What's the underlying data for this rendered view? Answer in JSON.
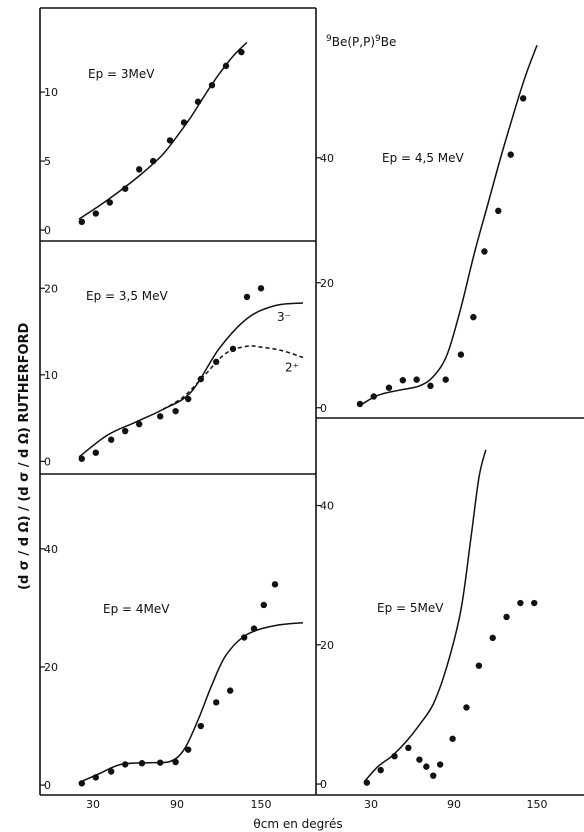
{
  "figure": {
    "title_parts": [
      "9",
      "Be(P,P)",
      "9",
      "Be"
    ],
    "ylabel": "(d σ / d Ω) / (d σ / d Ω) RUTHERFORD",
    "xlabel": "θcm en degrés",
    "x_ticks_left": [
      "30",
      "90",
      "150"
    ],
    "x_ticks_right": [
      "30",
      "90",
      "150"
    ]
  },
  "chart_data": [
    {
      "type": "line",
      "panel": "top-left",
      "label": "Ep = 3MeV",
      "xlim": [
        15,
        190
      ],
      "ylim": [
        -0.5,
        14.5
      ],
      "yticks": [
        0,
        5,
        10
      ],
      "ytick_labels": [
        "0",
        "5",
        "10"
      ],
      "series": [
        {
          "style": "solid",
          "x": [
            20,
            35,
            50,
            65,
            80,
            90,
            100,
            110,
            120,
            130,
            140
          ],
          "y": [
            0.8,
            1.8,
            2.9,
            4.1,
            5.5,
            6.8,
            8.2,
            9.8,
            11.3,
            12.6,
            13.6
          ]
        }
      ],
      "points": {
        "x": [
          22,
          32,
          42,
          53,
          63,
          73,
          85,
          95,
          105,
          115,
          125,
          136
        ],
        "y": [
          0.6,
          1.2,
          2.0,
          3.0,
          4.4,
          5.0,
          6.5,
          7.8,
          9.3,
          10.5,
          11.9,
          12.9
        ]
      }
    },
    {
      "type": "line",
      "panel": "middle-left",
      "label": "Ep = 3,5 MeV",
      "xlim": [
        15,
        190
      ],
      "ylim": [
        -1,
        25
      ],
      "yticks": [
        0,
        10,
        20
      ],
      "ytick_labels": [
        "0",
        "10",
        "20"
      ],
      "series": [
        {
          "name": "3⁻",
          "style": "solid",
          "x": [
            20,
            40,
            60,
            80,
            100,
            120,
            140,
            160,
            180
          ],
          "y": [
            0.5,
            3.0,
            4.5,
            6.0,
            8.0,
            13.0,
            16.5,
            18.0,
            18.3
          ]
        },
        {
          "name": "2⁺",
          "style": "dashed",
          "x": [
            80,
            95,
            110,
            125,
            140,
            150,
            165,
            180
          ],
          "y": [
            6.0,
            7.5,
            10.0,
            12.5,
            13.3,
            13.2,
            12.8,
            12.0
          ]
        }
      ],
      "points": {
        "x": [
          22,
          32,
          43,
          53,
          63,
          78,
          89,
          98,
          107,
          118,
          130,
          140,
          150
        ],
        "y": [
          0.3,
          1.0,
          2.5,
          3.5,
          4.3,
          5.2,
          5.8,
          7.2,
          9.5,
          11.5,
          13.0,
          19.0,
          20.0
        ]
      }
    },
    {
      "type": "line",
      "panel": "bottom-left",
      "label": "Ep = 4MeV",
      "xlim": [
        15,
        190
      ],
      "ylim": [
        -1,
        52
      ],
      "yticks": [
        0,
        20,
        40
      ],
      "ytick_labels": [
        "0",
        "20",
        "40"
      ],
      "series": [
        {
          "style": "solid",
          "x": [
            20,
            35,
            50,
            70,
            85,
            95,
            105,
            115,
            125,
            140,
            160,
            180
          ],
          "y": [
            0.4,
            2.0,
            3.5,
            3.8,
            4.0,
            6.0,
            11.0,
            17.0,
            22.0,
            25.5,
            27.0,
            27.5
          ]
        }
      ],
      "points": {
        "x": [
          22,
          32,
          43,
          53,
          65,
          78,
          89,
          98,
          107,
          118,
          128,
          138,
          145,
          152,
          160
        ],
        "y": [
          0.3,
          1.3,
          2.3,
          3.5,
          3.7,
          3.8,
          3.9,
          6.0,
          10.0,
          14.0,
          16.0,
          25.0,
          26.5,
          30.5,
          34.0
        ]
      }
    },
    {
      "type": "line",
      "panel": "top-right",
      "label": "Ep = 4,5 MeV",
      "xlim": [
        15,
        190
      ],
      "ylim": [
        -1,
        55
      ],
      "yticks": [
        0,
        20,
        40
      ],
      "ytick_labels": [
        "0",
        "20",
        "40"
      ],
      "series": [
        {
          "style": "solid",
          "x": [
            23,
            35,
            50,
            65,
            75,
            85,
            95,
            105,
            115,
            125,
            140,
            150
          ],
          "y": [
            0.5,
            2.0,
            2.8,
            3.5,
            5.0,
            8.5,
            16.0,
            25.0,
            33.0,
            41.0,
            52.0,
            58.0
          ]
        }
      ],
      "points": {
        "x": [
          22,
          32,
          43,
          53,
          63,
          73,
          84,
          95,
          104,
          112,
          122,
          131,
          140
        ],
        "y": [
          0.6,
          1.8,
          3.2,
          4.4,
          4.5,
          3.5,
          4.5,
          8.5,
          14.5,
          25.0,
          31.5,
          40.5,
          49.5
        ]
      }
    },
    {
      "type": "line",
      "panel": "bottom-right",
      "label": "Ep = 5MeV",
      "xlim": [
        15,
        190
      ],
      "ylim": [
        -1,
        52
      ],
      "yticks": [
        0,
        20,
        40
      ],
      "ytick_labels": [
        "0",
        "20",
        "40"
      ],
      "series": [
        {
          "style": "solid",
          "x": [
            25,
            35,
            45,
            55,
            65,
            75,
            85,
            95,
            102,
            108,
            113
          ],
          "y": [
            0.3,
            2.5,
            4.0,
            6.0,
            8.5,
            11.5,
            17.0,
            25.0,
            35.0,
            44.0,
            48.0
          ]
        }
      ],
      "points": {
        "x": [
          27,
          37,
          47,
          57,
          65,
          70,
          75,
          80,
          89,
          99,
          108,
          118,
          128,
          138,
          148
        ],
        "y": [
          0.2,
          2.0,
          4.0,
          5.2,
          3.5,
          2.5,
          1.2,
          2.8,
          6.5,
          11.0,
          17.0,
          21.0,
          24.0,
          26.0,
          26.0
        ]
      }
    }
  ]
}
